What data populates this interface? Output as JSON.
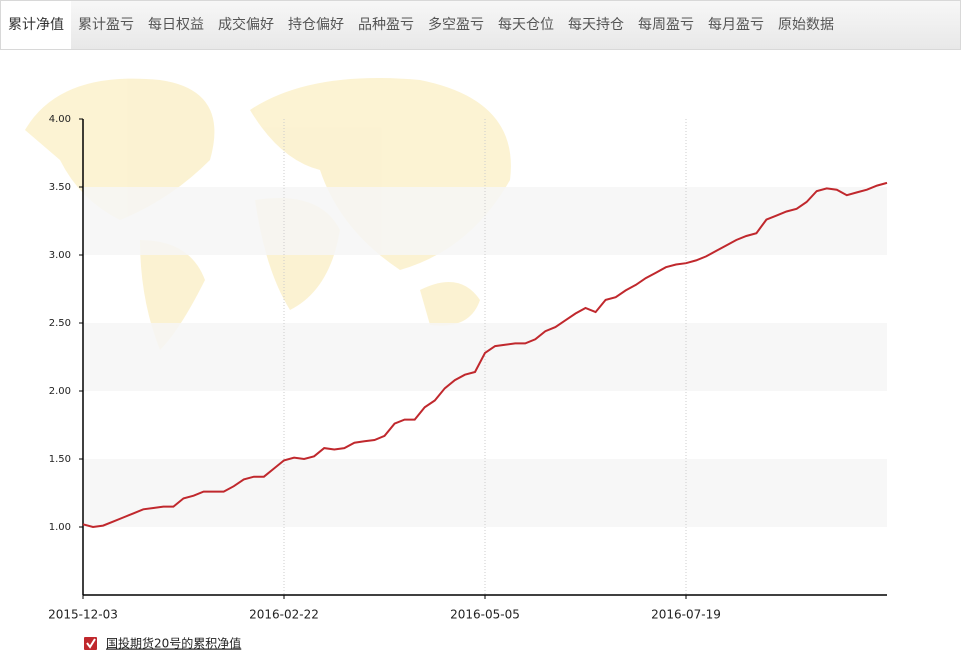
{
  "tabs": [
    "累计净值",
    "累计盈亏",
    "每日权益",
    "成交偏好",
    "持仓偏好",
    "品种盈亏",
    "多空盈亏",
    "每天仓位",
    "每天持仓",
    "每周盈亏",
    "每月盈亏",
    "原始数据"
  ],
  "chart_data": {
    "type": "line",
    "categories": [
      "2015-12-03",
      null,
      null,
      null,
      null,
      null,
      null,
      null,
      null,
      null,
      null,
      null,
      null,
      null,
      null,
      null,
      null,
      null,
      null,
      null,
      "2016-02-22",
      null,
      null,
      null,
      null,
      null,
      null,
      null,
      null,
      null,
      null,
      null,
      null,
      null,
      null,
      null,
      null,
      null,
      null,
      null,
      "2016-05-05",
      null,
      null,
      null,
      null,
      null,
      null,
      null,
      null,
      null,
      null,
      null,
      null,
      null,
      null,
      null,
      null,
      null,
      null,
      null,
      "2016-07-19",
      null,
      null,
      null,
      null,
      null,
      null,
      null,
      null,
      null,
      null,
      null,
      null,
      null,
      null,
      null,
      null,
      null,
      null,
      null,
      null
    ],
    "series": [
      {
        "name": "国投期货20号的累积净值",
        "color": "#c0282d",
        "values": [
          1.02,
          1.0,
          1.01,
          1.04,
          1.07,
          1.1,
          1.13,
          1.14,
          1.15,
          1.15,
          1.21,
          1.23,
          1.26,
          1.26,
          1.26,
          1.3,
          1.35,
          1.37,
          1.37,
          1.43,
          1.49,
          1.51,
          1.5,
          1.52,
          1.58,
          1.57,
          1.58,
          1.62,
          1.63,
          1.64,
          1.67,
          1.76,
          1.79,
          1.79,
          1.88,
          1.93,
          2.02,
          2.08,
          2.12,
          2.14,
          2.28,
          2.33,
          2.34,
          2.35,
          2.35,
          2.38,
          2.44,
          2.47,
          2.52,
          2.57,
          2.61,
          2.58,
          2.67,
          2.69,
          2.74,
          2.78,
          2.83,
          2.87,
          2.91,
          2.93,
          2.94,
          2.96,
          2.99,
          3.03,
          3.07,
          3.11,
          3.14,
          3.16,
          3.26,
          3.29,
          3.32,
          3.34,
          3.39,
          3.47,
          3.49,
          3.48,
          3.44,
          3.46,
          3.48,
          3.51,
          3.53
        ]
      }
    ],
    "ylim": [
      0.5,
      4.0
    ],
    "yticks": [
      {
        "value": 1.0,
        "label": "1.00"
      },
      {
        "value": 1.5,
        "label": "1.50"
      },
      {
        "value": 2.0,
        "label": "2.00"
      },
      {
        "value": 2.5,
        "label": "2.50"
      },
      {
        "value": 3.0,
        "label": "3.00"
      },
      {
        "value": 3.5,
        "label": "3.50"
      },
      {
        "value": 4.0,
        "label": "4.00"
      }
    ],
    "grid": true
  }
}
